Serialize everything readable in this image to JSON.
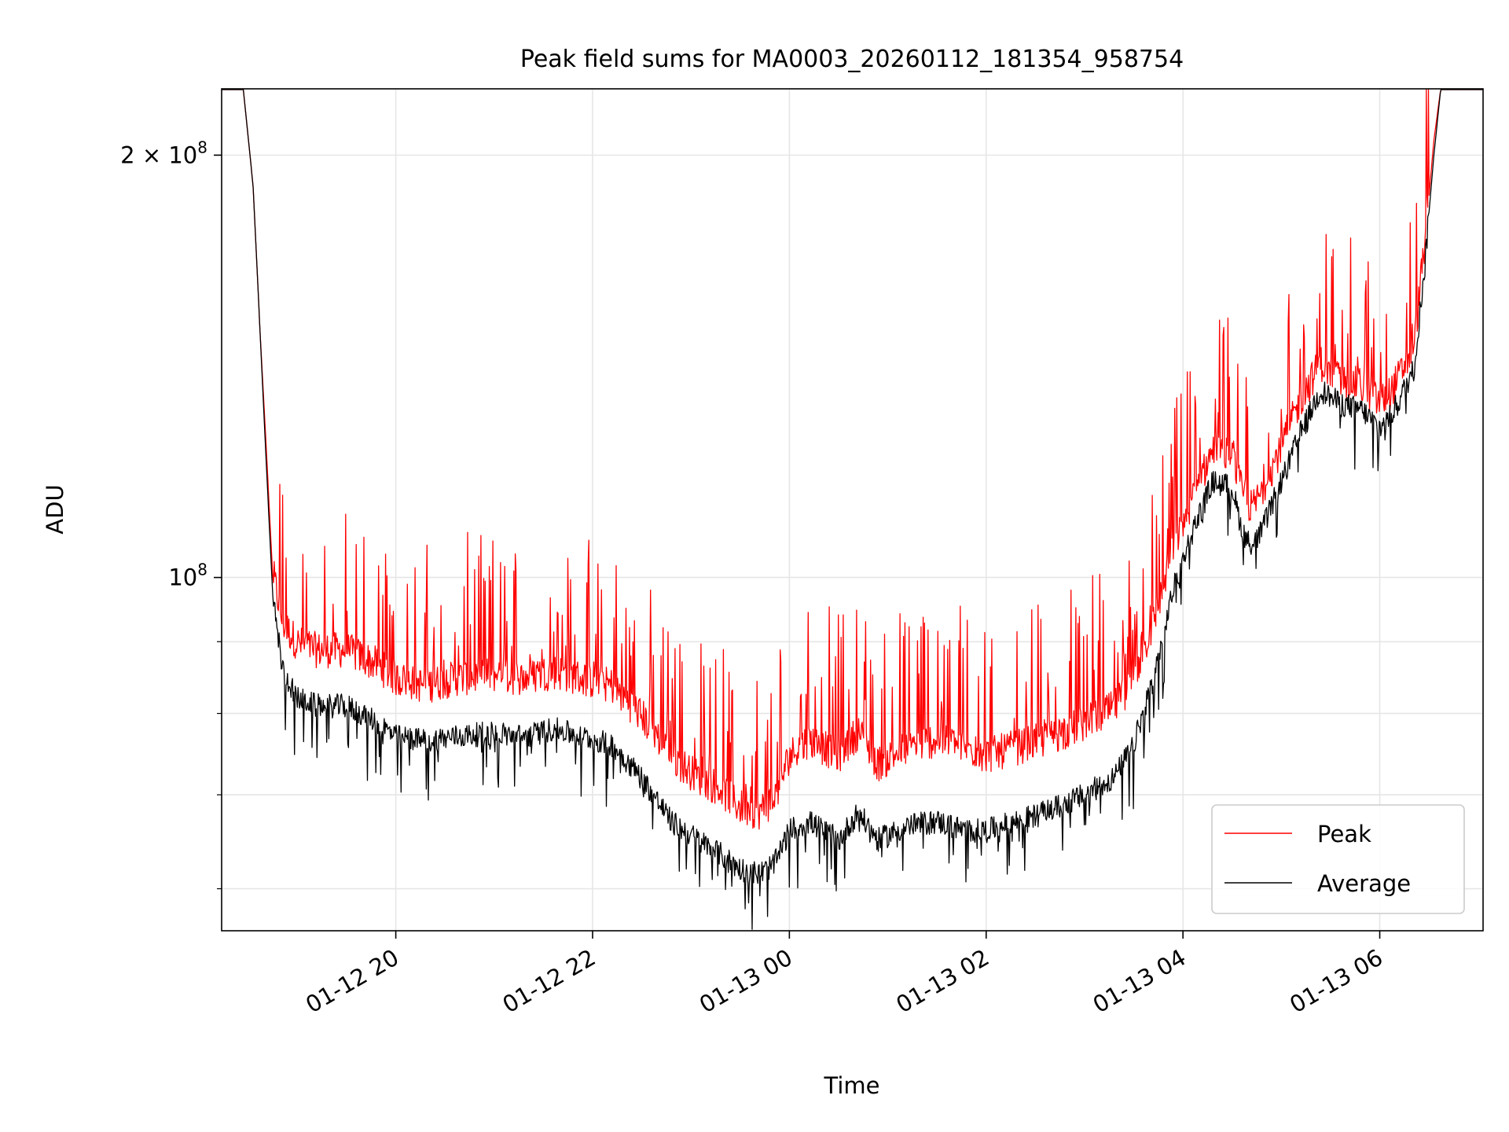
{
  "chart_data": {
    "type": "line",
    "title": "Peak field sums for MA0003_20260112_181354_958754",
    "xlabel": "Time",
    "ylabel": "ADU",
    "x_unit": "hours since 01-12 18:00",
    "xlim": [
      18.23,
      31.05
    ],
    "ylim": [
      56000000,
      223000000
    ],
    "yscale": "log",
    "grid": true,
    "legend_position": "lower-right",
    "x_ticks": [
      {
        "value": 20,
        "label": "01-12 20"
      },
      {
        "value": 22,
        "label": "01-12 22"
      },
      {
        "value": 24,
        "label": "01-13 00"
      },
      {
        "value": 26,
        "label": "01-13 02"
      },
      {
        "value": 28,
        "label": "01-13 04"
      },
      {
        "value": 30,
        "label": "01-13 06"
      }
    ],
    "y_major_ticks": [
      {
        "value": 100000000,
        "label_base": "10",
        "label_exp": "8",
        "label_coef": ""
      },
      {
        "value": 200000000,
        "label_base": "10",
        "label_exp": "8",
        "label_coef": "2 × "
      }
    ],
    "y_minor_ticks": [
      60000000,
      70000000,
      80000000,
      90000000
    ],
    "series": [
      {
        "name": "Peak",
        "color": "#ff0000",
        "x": [
          18.23,
          18.45,
          18.55,
          18.62,
          18.68,
          18.75,
          18.85,
          19.0,
          19.2,
          19.5,
          19.8,
          20.0,
          20.3,
          20.6,
          21.0,
          21.3,
          21.6,
          21.9,
          22.2,
          22.5,
          22.8,
          23.0,
          23.3,
          23.5,
          23.7,
          23.85,
          24.0,
          24.2,
          24.5,
          24.7,
          24.9,
          25.2,
          25.5,
          25.8,
          26.0,
          26.3,
          26.6,
          27.0,
          27.3,
          27.5,
          27.7,
          27.9,
          28.1,
          28.3,
          28.5,
          28.6,
          28.7,
          28.8,
          29.0,
          29.2,
          29.4,
          29.6,
          29.8,
          30.0,
          30.1,
          30.2,
          30.35,
          30.45,
          30.55,
          30.62,
          30.7,
          31.05
        ],
        "y": [
          223000000,
          223000000,
          190000000,
          150000000,
          125000000,
          100000000,
          92000000,
          89000000,
          88000000,
          88000000,
          86000000,
          84000000,
          83000000,
          84000000,
          84500000,
          84000000,
          85000000,
          84000000,
          83000000,
          79000000,
          74000000,
          72000000,
          70000000,
          68000000,
          67500000,
          69000000,
          74000000,
          76000000,
          74000000,
          77000000,
          73000000,
          75000000,
          76000000,
          75000000,
          74000000,
          75000000,
          76000000,
          78000000,
          80000000,
          84000000,
          92000000,
          104000000,
          113000000,
          122000000,
          121000000,
          114000000,
          111000000,
          114000000,
          123000000,
          133000000,
          141000000,
          137000000,
          136000000,
          132000000,
          134000000,
          138000000,
          145000000,
          170000000,
          205000000,
          223000000,
          223000000,
          223000000
        ]
      },
      {
        "name": "Average",
        "color": "#000000",
        "x": [
          18.23,
          18.45,
          18.55,
          18.62,
          18.68,
          18.75,
          18.85,
          19.0,
          19.2,
          19.5,
          19.8,
          20.0,
          20.3,
          20.6,
          21.0,
          21.3,
          21.6,
          21.9,
          22.2,
          22.5,
          22.8,
          23.0,
          23.3,
          23.5,
          23.7,
          23.85,
          24.0,
          24.2,
          24.5,
          24.7,
          24.9,
          25.2,
          25.5,
          25.8,
          26.0,
          26.3,
          26.6,
          27.0,
          27.3,
          27.5,
          27.7,
          27.9,
          28.1,
          28.3,
          28.5,
          28.6,
          28.7,
          28.8,
          29.0,
          29.2,
          29.4,
          29.6,
          29.8,
          30.0,
          30.1,
          30.2,
          30.35,
          30.45,
          30.55,
          30.62,
          30.7,
          31.05
        ],
        "y": [
          223000000,
          223000000,
          190000000,
          150000000,
          122000000,
          97000000,
          86000000,
          82000000,
          81000000,
          81000000,
          79000000,
          77000000,
          76500000,
          77000000,
          77500000,
          77000000,
          78000000,
          77000000,
          76000000,
          72000000,
          67000000,
          65500000,
          63500000,
          62000000,
          61500000,
          62500000,
          66000000,
          67000000,
          65000000,
          68000000,
          65000000,
          66500000,
          67000000,
          66000000,
          66000000,
          67000000,
          68000000,
          70000000,
          72000000,
          76000000,
          85000000,
          98000000,
          108000000,
          117000000,
          116000000,
          108000000,
          105000000,
          108000000,
          117000000,
          127000000,
          136000000,
          133000000,
          132000000,
          128000000,
          130000000,
          134000000,
          141000000,
          165000000,
          200000000,
          223000000,
          223000000,
          223000000
        ]
      }
    ]
  }
}
